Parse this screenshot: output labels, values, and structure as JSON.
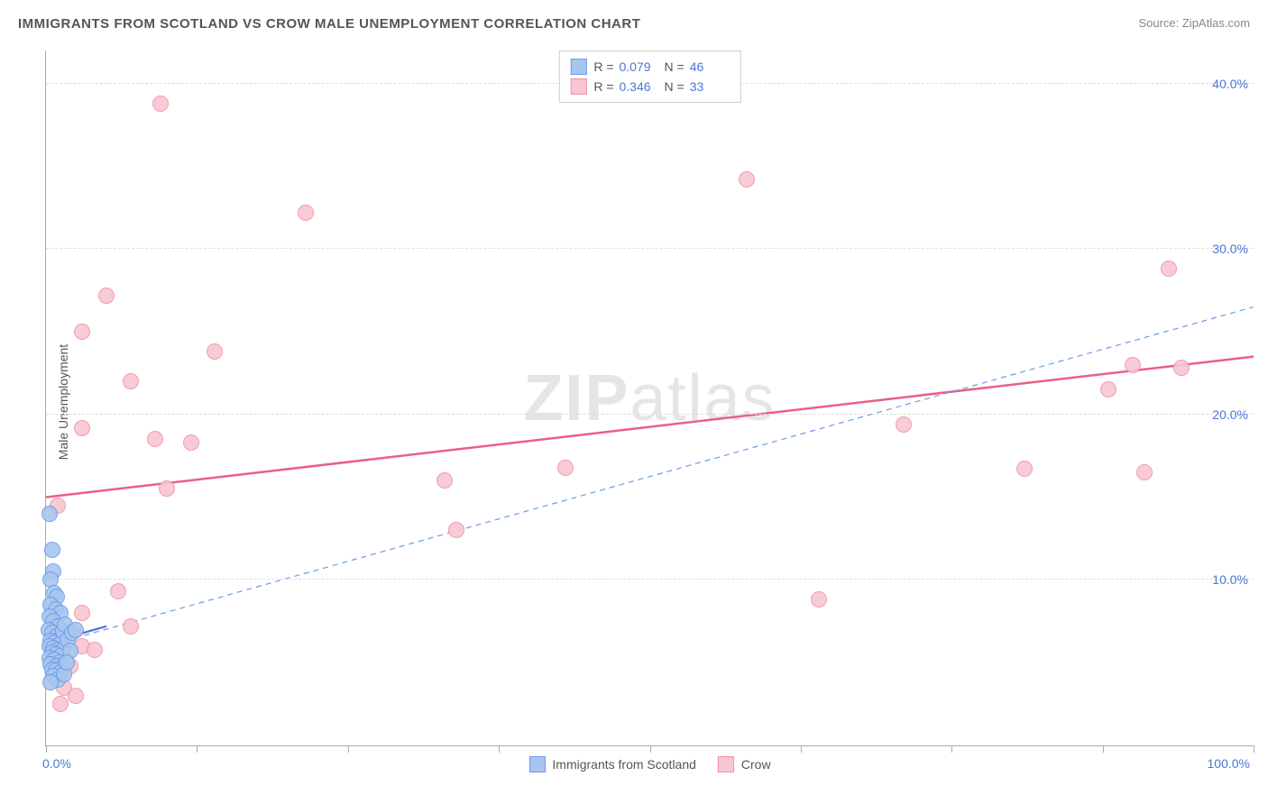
{
  "header": {
    "title": "IMMIGRANTS FROM SCOTLAND VS CROW MALE UNEMPLOYMENT CORRELATION CHART",
    "source_prefix": "Source: ",
    "source_link": "ZipAtlas.com"
  },
  "ylabel": "Male Unemployment",
  "watermark": {
    "bold": "ZIP",
    "light": "atlas"
  },
  "chart": {
    "type": "scatter",
    "xlim": [
      0,
      100
    ],
    "ylim": [
      0,
      42
    ],
    "y_ticks": [
      10,
      20,
      30,
      40
    ],
    "y_tick_labels": [
      "10.0%",
      "20.0%",
      "30.0%",
      "40.0%"
    ],
    "x_ticks": [
      0,
      12.5,
      25,
      37.5,
      50,
      62.5,
      75,
      87.5,
      100
    ],
    "x_labels": {
      "min": "0.0%",
      "max": "100.0%"
    },
    "background_color": "#ffffff",
    "grid_color": "#dddddd",
    "axis_color": "#aaaaaa",
    "tick_label_color": "#4a76d4",
    "marker_radius": 9,
    "marker_border_width": 1.5,
    "marker_fill_opacity": 0.25
  },
  "series": {
    "blue": {
      "label": "Immigrants from Scotland",
      "stroke": "#6a9be8",
      "fill": "#a8c5ef",
      "R_label": "R =",
      "R": "0.079",
      "N_label": "N =",
      "N": "46",
      "trend": {
        "x1": 0,
        "y1": 6.0,
        "x2": 100,
        "y2": 26.5,
        "dashed": true,
        "width": 1.2,
        "color": "#6a9be8"
      },
      "solid_seg": {
        "x1": 0.2,
        "y1": 6.2,
        "x2": 5,
        "y2": 7.2,
        "width": 2.2,
        "color": "#4a76d4"
      },
      "points": [
        [
          0.3,
          14.0
        ],
        [
          0.5,
          11.8
        ],
        [
          0.6,
          10.5
        ],
        [
          0.4,
          10.0
        ],
        [
          0.7,
          9.2
        ],
        [
          0.9,
          9.0
        ],
        [
          0.4,
          8.5
        ],
        [
          0.8,
          8.2
        ],
        [
          1.2,
          8.0
        ],
        [
          0.3,
          7.8
        ],
        [
          0.6,
          7.5
        ],
        [
          1.0,
          7.2
        ],
        [
          0.2,
          7.0
        ],
        [
          0.5,
          6.8
        ],
        [
          0.9,
          6.6
        ],
        [
          1.3,
          6.5
        ],
        [
          0.4,
          6.3
        ],
        [
          0.7,
          6.2
        ],
        [
          1.1,
          6.1
        ],
        [
          0.3,
          6.0
        ],
        [
          0.6,
          5.9
        ],
        [
          1.0,
          5.8
        ],
        [
          1.4,
          5.8
        ],
        [
          0.5,
          5.6
        ],
        [
          0.8,
          5.5
        ],
        [
          1.2,
          5.4
        ],
        [
          0.3,
          5.3
        ],
        [
          0.7,
          5.2
        ],
        [
          1.1,
          5.0
        ],
        [
          0.4,
          4.9
        ],
        [
          0.9,
          4.8
        ],
        [
          1.3,
          4.7
        ],
        [
          0.5,
          4.6
        ],
        [
          0.8,
          4.5
        ],
        [
          1.2,
          4.4
        ],
        [
          0.6,
          4.2
        ],
        [
          1.0,
          4.0
        ],
        [
          0.4,
          3.8
        ],
        [
          1.4,
          6.9
        ],
        [
          1.6,
          7.3
        ],
        [
          1.8,
          6.4
        ],
        [
          2.0,
          5.7
        ],
        [
          2.2,
          6.8
        ],
        [
          2.5,
          7.0
        ],
        [
          1.5,
          4.3
        ],
        [
          1.7,
          5.0
        ]
      ]
    },
    "pink": {
      "label": "Crow",
      "stroke": "#f092a8",
      "fill": "#f8c6d1",
      "R_label": "R =",
      "R": "0.346",
      "N_label": "N =",
      "N": "33",
      "trend": {
        "x1": 0,
        "y1": 15.0,
        "x2": 100,
        "y2": 23.5,
        "dashed": false,
        "width": 2.5,
        "color": "#ea5f87"
      },
      "points": [
        [
          9.5,
          38.8
        ],
        [
          21.5,
          32.2
        ],
        [
          58,
          34.2
        ],
        [
          5,
          27.2
        ],
        [
          93,
          28.8
        ],
        [
          3,
          25.0
        ],
        [
          14,
          23.8
        ],
        [
          7,
          22.0
        ],
        [
          90,
          23.0
        ],
        [
          94,
          22.8
        ],
        [
          9,
          18.5
        ],
        [
          3,
          19.2
        ],
        [
          12,
          18.3
        ],
        [
          88,
          21.5
        ],
        [
          71,
          19.4
        ],
        [
          10,
          15.5
        ],
        [
          33,
          16.0
        ],
        [
          43,
          16.8
        ],
        [
          81,
          16.7
        ],
        [
          91,
          16.5
        ],
        [
          34,
          13.0
        ],
        [
          1,
          14.5
        ],
        [
          6,
          9.3
        ],
        [
          64,
          8.8
        ],
        [
          3,
          8.0
        ],
        [
          7,
          7.2
        ],
        [
          3,
          6.0
        ],
        [
          1,
          5.5
        ],
        [
          2,
          4.8
        ],
        [
          1.5,
          3.5
        ],
        [
          2.5,
          3.0
        ],
        [
          1.2,
          2.5
        ],
        [
          4,
          5.8
        ]
      ]
    }
  },
  "legend_bottom": [
    {
      "key": "blue"
    },
    {
      "key": "pink"
    }
  ]
}
